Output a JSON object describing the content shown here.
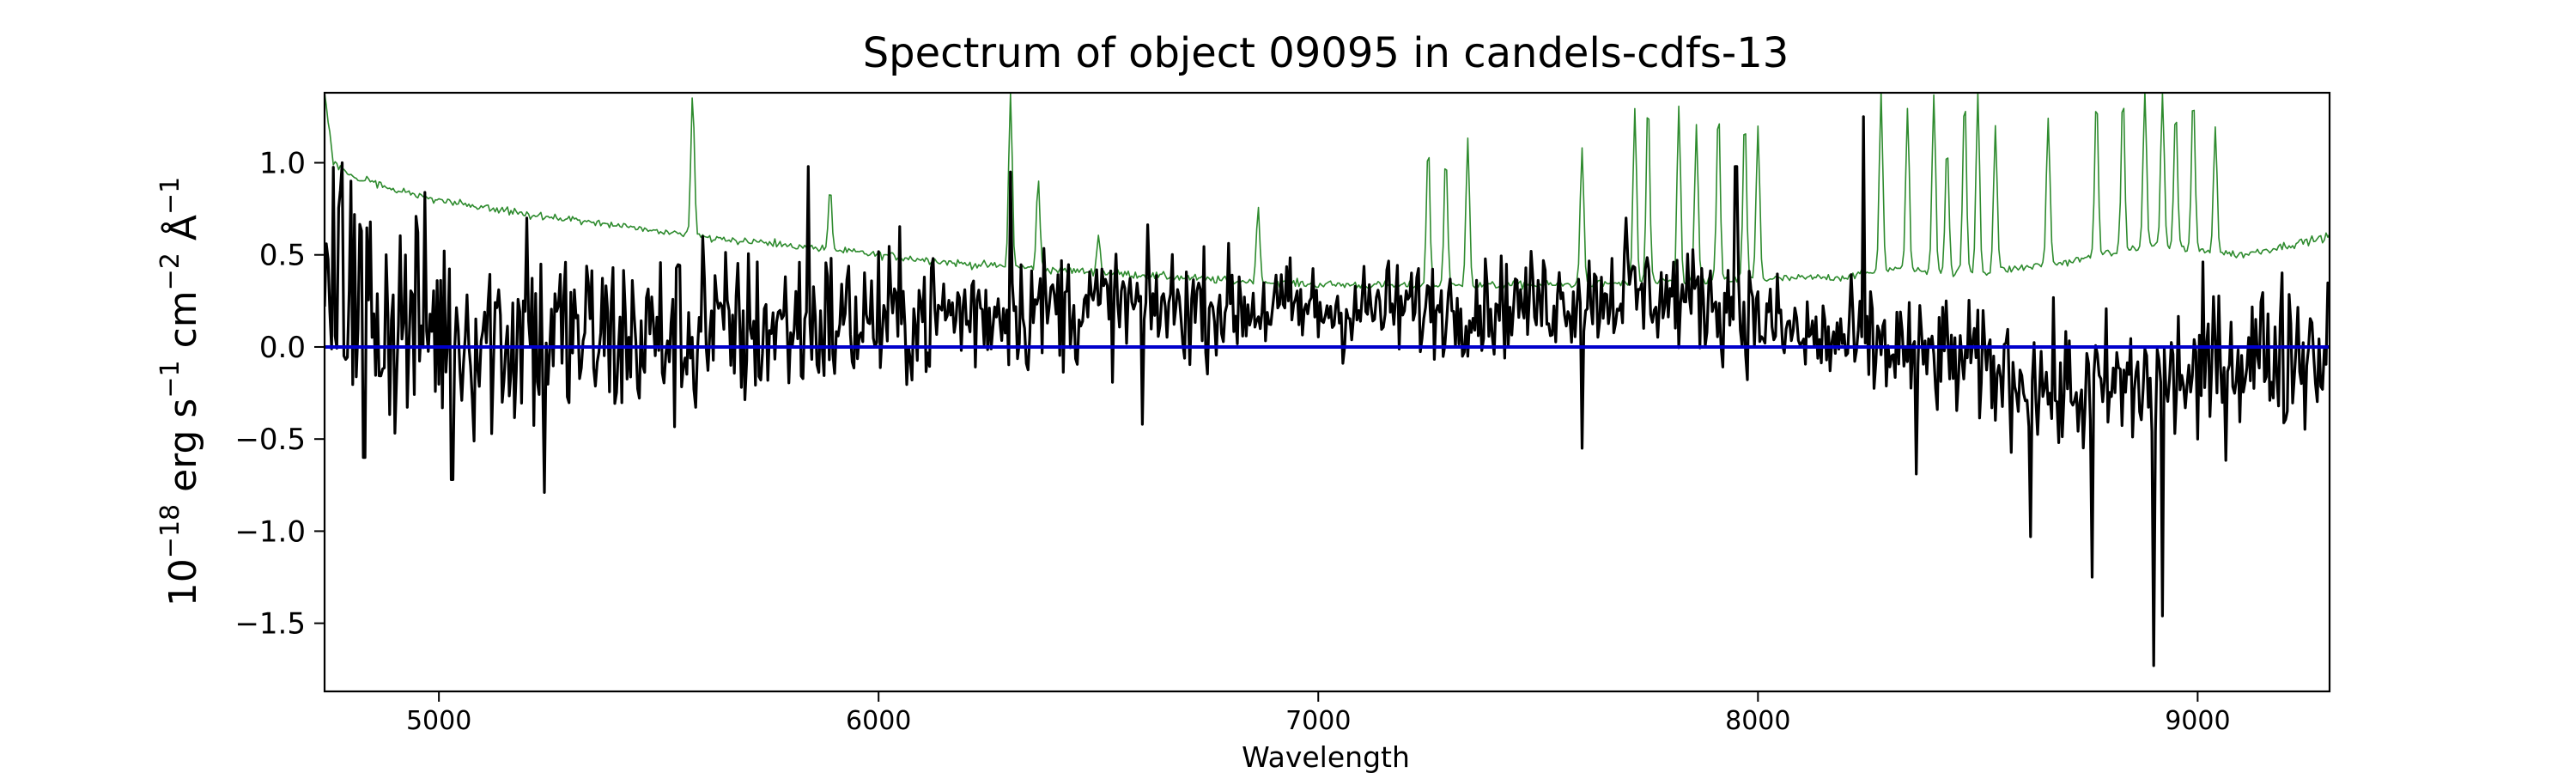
{
  "chart_data": {
    "type": "line",
    "title": "Spectrum of object 09095 in candels-cdfs-13",
    "xlabel": "Wavelength",
    "ylabel_parts": {
      "base": "10",
      "exp1": "−18",
      "erg": " erg s",
      "exp2": "−1",
      "cm": " cm",
      "exp3": "−2",
      "ang": " Å",
      "exp4": "−1"
    },
    "xlim": [
      4740,
      9300
    ],
    "ylim": [
      -1.87,
      1.38
    ],
    "x_ticks": [
      5000,
      6000,
      7000,
      8000,
      9000
    ],
    "x_tick_labels": [
      "5000",
      "6000",
      "7000",
      "8000",
      "9000"
    ],
    "y_ticks": [
      1.0,
      0.5,
      0.0,
      -0.5,
      -1.0,
      -1.5
    ],
    "y_tick_labels": [
      "1.0",
      "0.5",
      "0.0",
      "−0.5",
      "−1.0",
      "−1.5"
    ],
    "grid": false,
    "series": [
      {
        "role": "error",
        "color": "#2e8b2e",
        "baseline": [
          [
            4740,
            1.38
          ],
          [
            4760,
            1.0
          ],
          [
            4800,
            0.93
          ],
          [
            4900,
            0.85
          ],
          [
            5000,
            0.8
          ],
          [
            5200,
            0.72
          ],
          [
            5400,
            0.66
          ],
          [
            5600,
            0.6
          ],
          [
            5800,
            0.55
          ],
          [
            6000,
            0.5
          ],
          [
            6200,
            0.45
          ],
          [
            6400,
            0.42
          ],
          [
            6600,
            0.39
          ],
          [
            6800,
            0.36
          ],
          [
            7000,
            0.34
          ],
          [
            7300,
            0.33
          ],
          [
            7600,
            0.34
          ],
          [
            7900,
            0.36
          ],
          [
            8200,
            0.38
          ],
          [
            8300,
            0.42
          ],
          [
            8500,
            0.4
          ],
          [
            8700,
            0.46
          ],
          [
            8900,
            0.55
          ],
          [
            9100,
            0.5
          ],
          [
            9300,
            0.6
          ]
        ],
        "peaks": [
          [
            5577,
            1.38
          ],
          [
            5890,
            0.85
          ],
          [
            6300,
            1.38
          ],
          [
            6363,
            0.9
          ],
          [
            6500,
            0.6
          ],
          [
            6863,
            0.75
          ],
          [
            7250,
            1.1
          ],
          [
            7290,
            1.05
          ],
          [
            7340,
            1.15
          ],
          [
            7600,
            1.1
          ],
          [
            7720,
            1.3
          ],
          [
            7750,
            1.35
          ],
          [
            7820,
            1.3
          ],
          [
            7860,
            1.2
          ],
          [
            7910,
            1.3
          ],
          [
            7970,
            1.25
          ],
          [
            8000,
            1.2
          ],
          [
            8280,
            1.38
          ],
          [
            8340,
            1.3
          ],
          [
            8400,
            1.38
          ],
          [
            8430,
            1.1
          ],
          [
            8470,
            1.38
          ],
          [
            8500,
            1.38
          ],
          [
            8540,
            1.2
          ],
          [
            8660,
            1.25
          ],
          [
            8770,
            1.38
          ],
          [
            8830,
            1.38
          ],
          [
            8880,
            1.38
          ],
          [
            8920,
            1.38
          ],
          [
            8950,
            1.3
          ],
          [
            8990,
            1.38
          ],
          [
            9040,
            1.2
          ]
        ]
      },
      {
        "role": "flux",
        "color": "#000000",
        "trend": [
          [
            4740,
            0.3
          ],
          [
            4900,
            0.15
          ],
          [
            5200,
            0.05
          ],
          [
            5600,
            0.05
          ],
          [
            5800,
            0.12
          ],
          [
            6000,
            0.15
          ],
          [
            6400,
            0.22
          ],
          [
            6800,
            0.22
          ],
          [
            7000,
            0.2
          ],
          [
            7400,
            0.22
          ],
          [
            7700,
            0.3
          ],
          [
            7900,
            0.25
          ],
          [
            8100,
            0.05
          ],
          [
            8300,
            0.0
          ],
          [
            8500,
            -0.1
          ],
          [
            8700,
            -0.25
          ],
          [
            8900,
            -0.2
          ],
          [
            9100,
            -0.05
          ],
          [
            9300,
            0.0
          ]
        ],
        "features": [
          [
            4780,
            1.0
          ],
          [
            4800,
            0.9
          ],
          [
            4830,
            -0.6
          ],
          [
            5030,
            -0.72
          ],
          [
            5200,
            0.7
          ],
          [
            5240,
            -0.79
          ],
          [
            5600,
            0.6
          ],
          [
            5840,
            0.98
          ],
          [
            6300,
            0.95
          ],
          [
            6600,
            -0.42
          ],
          [
            7600,
            -0.55
          ],
          [
            7700,
            0.7
          ],
          [
            7950,
            0.98
          ],
          [
            8240,
            1.25
          ],
          [
            8360,
            -0.69
          ],
          [
            8620,
            -1.03
          ],
          [
            8760,
            -1.25
          ],
          [
            8900,
            -1.73
          ],
          [
            8920,
            -1.46
          ],
          [
            9000,
            -0.5
          ]
        ]
      },
      {
        "role": "zero",
        "color": "#0000cc",
        "points": [
          [
            4740,
            0.0
          ],
          [
            9300,
            0.0
          ]
        ]
      }
    ]
  }
}
